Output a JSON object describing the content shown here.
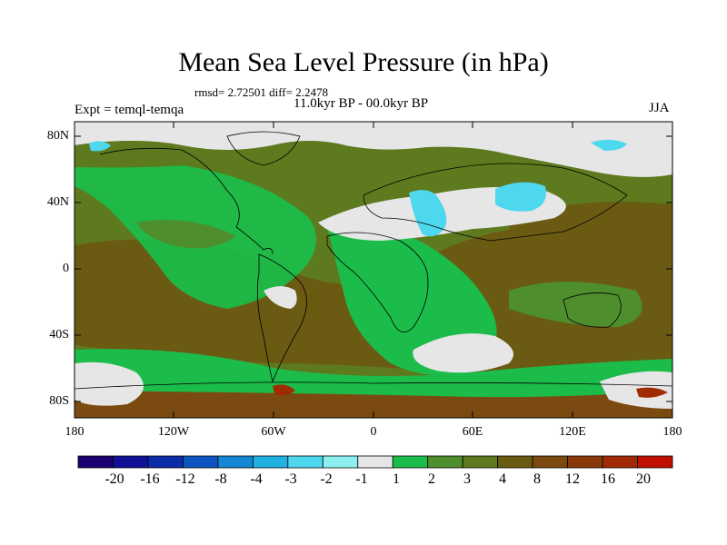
{
  "title": "Mean Sea Level Pressure (in hPa)",
  "stats": "rmsd= 2.72501 diff= 2.2478",
  "period": "11.0kyr BP - 00.0kyr BP",
  "experiment": "Expt = temql-temqa",
  "season": "JJA",
  "lat_ticks": [
    "80N",
    "40N",
    "0",
    "40S",
    "80S"
  ],
  "lon_ticks": [
    "180",
    "120W",
    "60W",
    "0",
    "60E",
    "120E",
    "180"
  ],
  "colorbar": {
    "colors": [
      "#1a0070",
      "#101096",
      "#0c2ca8",
      "#0c54c0",
      "#1486d4",
      "#20b0e2",
      "#4ed8f0",
      "#8cf0f0",
      "#e6e6e6",
      "#1cbc4a",
      "#4e8e2c",
      "#5e7a1e",
      "#6a5a12",
      "#7a4a10",
      "#8a3a08",
      "#a02a04",
      "#c01000"
    ],
    "labels": [
      "-20",
      "-16",
      "-12",
      "-8",
      "-4",
      "-3",
      "-2",
      "-1",
      "1",
      "2",
      "3",
      "4",
      "8",
      "12",
      "16",
      "20"
    ]
  },
  "regions": [
    {
      "name": "north-arctic-white",
      "color": "#e6e6e6"
    },
    {
      "name": "eurasia-white",
      "color": "#e6e6e6"
    },
    {
      "name": "south-atlantic-white",
      "color": "#e6e6e6"
    },
    {
      "name": "southern-ocean-white",
      "color": "#e6e6e6"
    },
    {
      "name": "asia-cyan",
      "color": "#4ed8f0"
    },
    {
      "name": "mideast-cyan",
      "color": "#4ed8f0"
    }
  ]
}
